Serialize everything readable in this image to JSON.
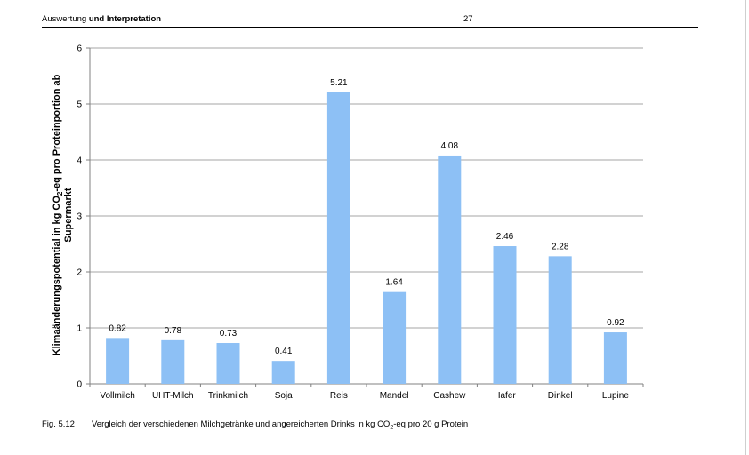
{
  "header": {
    "left_plain": "Auswertung",
    "left_bold": "und Interpretation",
    "page_number": "27"
  },
  "caption": {
    "label": "Fig. 5.12",
    "text_before": "Vergleich der verschiedenen Milchgetränke und angereicherten Drinks in kg CO",
    "subscript": "2",
    "text_after": "-eq pro 20 g Protein"
  },
  "colors": {
    "bar": "#8dc0f5",
    "grid": "#a6a6a6",
    "axis": "#808080"
  },
  "chart_data": {
    "type": "bar",
    "categories": [
      "Vollmilch",
      "UHT-Milch",
      "Trinkmilch",
      "Soja",
      "Reis",
      "Mandel",
      "Cashew",
      "Hafer",
      "Dinkel",
      "Lupine"
    ],
    "values": [
      0.82,
      0.78,
      0.73,
      0.41,
      5.21,
      1.64,
      4.08,
      2.46,
      2.28,
      0.92
    ],
    "value_labels": [
      "0.82",
      "0.78",
      "0.73",
      "0.41",
      "5.21",
      "1.64",
      "4.08",
      "2.46",
      "2.28",
      "0.92"
    ],
    "title": "",
    "xlabel": "",
    "ylabel_line1_before": "Klimaänderungspotential in kg CO",
    "ylabel_line1_sub": "2",
    "ylabel_line1_after": "-eq pro Proteinportion ab",
    "ylabel_line2": "Supermarkt",
    "ylim": [
      0,
      6
    ],
    "yticks": [
      "0",
      "1",
      "2",
      "3",
      "4",
      "5",
      "6"
    ],
    "grid": true,
    "legend": "none"
  }
}
